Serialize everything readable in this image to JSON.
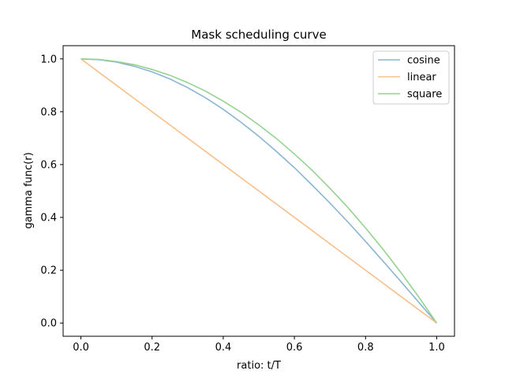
{
  "chart_data": {
    "type": "line",
    "title": "Mask scheduling curve",
    "xlabel": "ratio: t/T",
    "ylabel": "gamma func(r)",
    "xlim": [
      -0.05,
      1.05
    ],
    "ylim": [
      -0.05,
      1.05
    ],
    "xticks": [
      0.0,
      0.2,
      0.4,
      0.6,
      0.8,
      1.0
    ],
    "yticks": [
      0.0,
      0.2,
      0.4,
      0.6,
      0.8,
      1.0
    ],
    "xtick_labels": [
      "0.0",
      "0.2",
      "0.4",
      "0.6",
      "0.8",
      "1.0"
    ],
    "ytick_labels": [
      "0.0",
      "0.2",
      "0.4",
      "0.6",
      "0.8",
      "1.0"
    ],
    "grid": false,
    "legend_position": "top-right",
    "x": [
      0.0,
      0.05,
      0.1,
      0.15,
      0.2,
      0.25,
      0.3,
      0.35,
      0.4,
      0.45,
      0.5,
      0.55,
      0.6,
      0.65,
      0.7,
      0.75,
      0.8,
      0.85,
      0.9,
      0.95,
      1.0
    ],
    "series": [
      {
        "name": "cosine",
        "color": "#8ab6d3",
        "values": [
          1.0,
          0.997,
          0.988,
          0.972,
          0.951,
          0.924,
          0.891,
          0.853,
          0.809,
          0.76,
          0.707,
          0.649,
          0.588,
          0.522,
          0.454,
          0.383,
          0.309,
          0.233,
          0.156,
          0.078,
          0.0
        ]
      },
      {
        "name": "linear",
        "color": "#f9bf8b",
        "values": [
          1.0,
          0.95,
          0.9,
          0.85,
          0.8,
          0.75,
          0.7,
          0.65,
          0.6,
          0.55,
          0.5,
          0.45,
          0.4,
          0.35,
          0.3,
          0.25,
          0.2,
          0.15,
          0.1,
          0.05,
          0.0
        ]
      },
      {
        "name": "square",
        "color": "#95d38f",
        "values": [
          1.0,
          0.998,
          0.99,
          0.978,
          0.96,
          0.938,
          0.91,
          0.878,
          0.84,
          0.798,
          0.75,
          0.698,
          0.64,
          0.578,
          0.51,
          0.438,
          0.36,
          0.278,
          0.19,
          0.098,
          0.0
        ]
      }
    ]
  }
}
